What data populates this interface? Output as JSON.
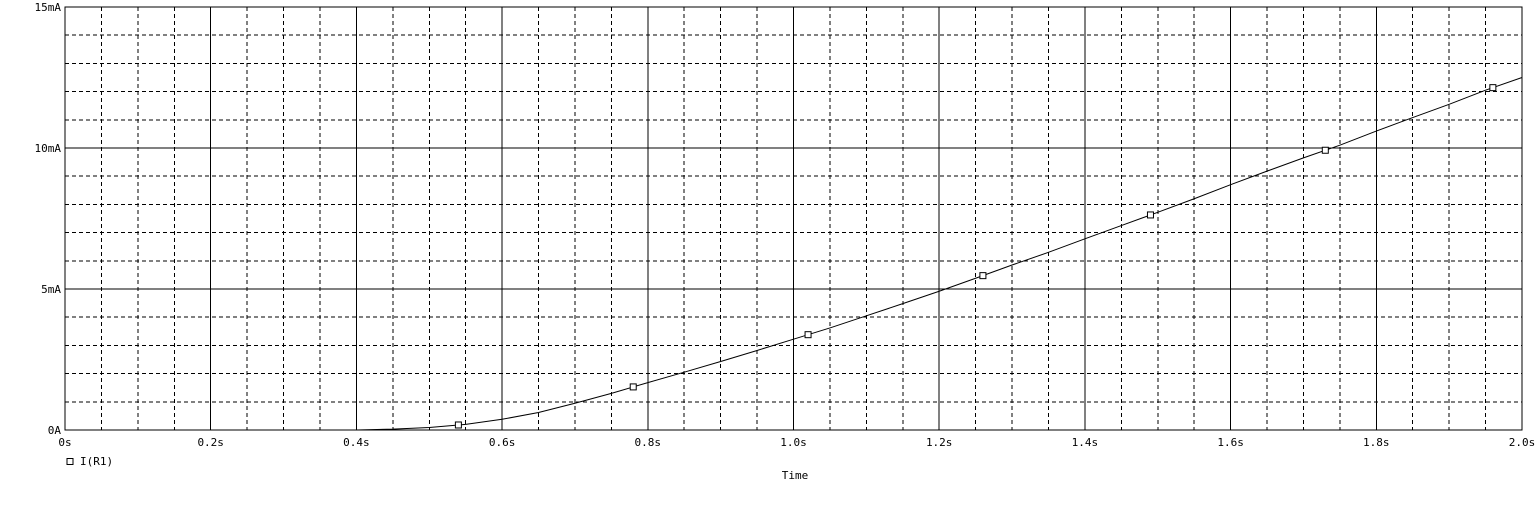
{
  "chart_data": {
    "type": "line",
    "title": "",
    "xlabel": "Time",
    "ylabel": "",
    "xlim": [
      0,
      2.0
    ],
    "ylim": [
      0,
      15
    ],
    "x_ticks": [
      {
        "value": 0.0,
        "label": "0s"
      },
      {
        "value": 0.2,
        "label": "0.2s"
      },
      {
        "value": 0.4,
        "label": "0.4s"
      },
      {
        "value": 0.6,
        "label": "0.6s"
      },
      {
        "value": 0.8,
        "label": "0.8s"
      },
      {
        "value": 1.0,
        "label": "1.0s"
      },
      {
        "value": 1.2,
        "label": "1.2s"
      },
      {
        "value": 1.4,
        "label": "1.4s"
      },
      {
        "value": 1.6,
        "label": "1.6s"
      },
      {
        "value": 1.8,
        "label": "1.8s"
      },
      {
        "value": 2.0,
        "label": "2.0s"
      }
    ],
    "y_ticks": [
      {
        "value": 0,
        "label": "0A"
      },
      {
        "value": 5,
        "label": "5mA"
      },
      {
        "value": 10,
        "label": "10mA"
      },
      {
        "value": 15,
        "label": "15mA"
      }
    ],
    "grid": true,
    "legend_position": "bottom-left",
    "series": [
      {
        "name": "I(R1)",
        "marker": "square",
        "x": [
          0.4,
          0.45,
          0.5,
          0.55,
          0.6,
          0.65,
          0.7,
          0.75,
          0.8,
          0.85,
          0.9,
          0.95,
          1.0,
          1.05,
          1.1,
          1.15,
          1.2,
          1.25,
          1.3,
          1.35,
          1.4,
          1.45,
          1.5,
          1.55,
          1.6,
          1.65,
          1.7,
          1.75,
          1.8,
          1.85,
          1.9,
          1.95,
          2.0
        ],
        "y": [
          0.0,
          0.03,
          0.09,
          0.2,
          0.38,
          0.62,
          0.95,
          1.3,
          1.68,
          2.05,
          2.43,
          2.82,
          3.22,
          3.62,
          4.05,
          4.48,
          4.92,
          5.38,
          5.85,
          6.3,
          6.78,
          7.25,
          7.72,
          8.2,
          8.7,
          9.18,
          9.65,
          10.1,
          10.6,
          11.08,
          11.55,
          12.05,
          12.5
        ]
      }
    ]
  }
}
